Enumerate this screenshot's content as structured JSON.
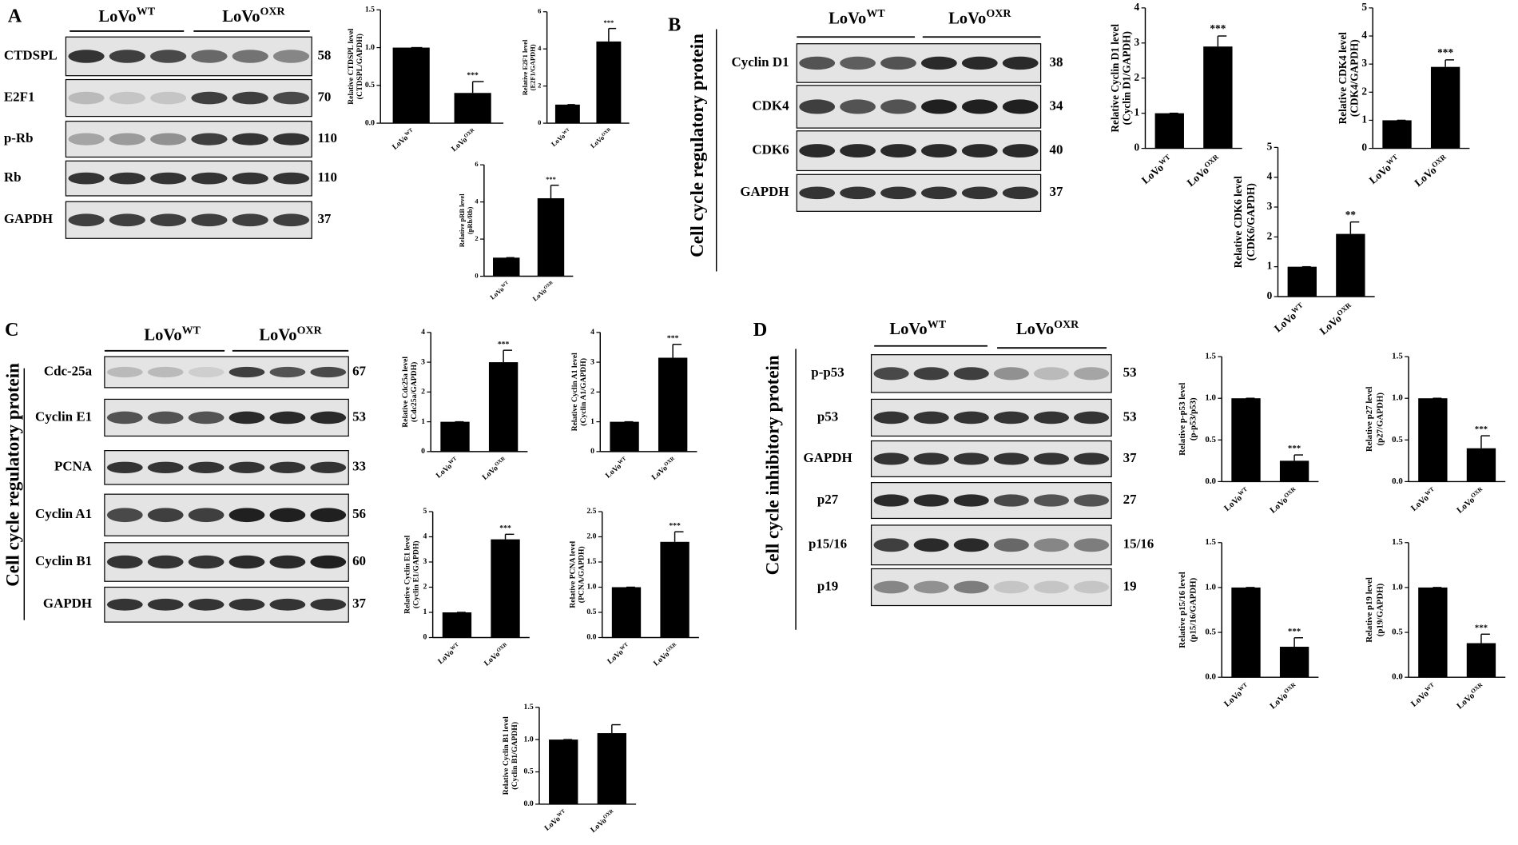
{
  "blots": [
    {
      "letter": "A",
      "groups": [
        {
          "base": "LoVo",
          "sup": "WT"
        },
        {
          "base": "LoVo",
          "sup": "OXR"
        }
      ],
      "rows": [
        {
          "label": "CTDSPL",
          "mw": "58"
        },
        {
          "label": "E2F1",
          "mw": "70"
        },
        {
          "label": "p-Rb",
          "mw": "110"
        },
        {
          "label": "Rb",
          "mw": "110"
        },
        {
          "label": "GAPDH",
          "mw": "37"
        }
      ]
    },
    {
      "letter": "B",
      "side_label": "Cell cycle regulatory protein",
      "groups": [
        {
          "base": "LoVo",
          "sup": "WT"
        },
        {
          "base": "LoVo",
          "sup": "OXR"
        }
      ],
      "rows": [
        {
          "label": "Cyclin D1",
          "mw": "38"
        },
        {
          "label": "CDK4",
          "mw": "34"
        },
        {
          "label": "CDK6",
          "mw": "40"
        },
        {
          "label": "GAPDH",
          "mw": "37"
        }
      ]
    },
    {
      "letter": "C",
      "side_label": "Cell cycle regulatory protein",
      "groups": [
        {
          "base": "LoVo",
          "sup": "WT"
        },
        {
          "base": "LoVo",
          "sup": "OXR"
        }
      ],
      "rows": [
        {
          "label": "Cdc-25a",
          "mw": "67"
        },
        {
          "label": "Cyclin E1",
          "mw": "53"
        },
        {
          "label": "PCNA",
          "mw": "33"
        },
        {
          "label": "Cyclin A1",
          "mw": "56"
        },
        {
          "label": "Cyclin B1",
          "mw": "60"
        },
        {
          "label": "GAPDH",
          "mw": "37"
        }
      ]
    },
    {
      "letter": "D",
      "side_label": "Cell cycle inhibitory protein",
      "groups": [
        {
          "base": "LoVo",
          "sup": "WT"
        },
        {
          "base": "LoVo",
          "sup": "OXR"
        }
      ],
      "rows": [
        {
          "label": "p-p53",
          "mw": "53"
        },
        {
          "label": "p53",
          "mw": "53"
        },
        {
          "label": "GAPDH",
          "mw": "37"
        },
        {
          "label": "p27",
          "mw": "27"
        },
        {
          "label": "p15/16",
          "mw": "15/16"
        },
        {
          "label": "p19",
          "mw": "19"
        }
      ]
    }
  ],
  "chart_data": [
    {
      "type": "bar",
      "ylabel": [
        "Relative CTDSPL level",
        "(CTDSPL/GAPDH)"
      ],
      "categories": [
        "LoVo",
        "LoVo"
      ],
      "category_superscripts": [
        "WT",
        "OXR"
      ],
      "values": [
        1,
        0.4
      ],
      "errors": [
        0,
        0.15
      ],
      "annotation": "***",
      "color": "#000000",
      "ylim": [
        0,
        1.5
      ],
      "yticks": [
        {
          "value": 0,
          "label": "0.0"
        },
        {
          "value": 0.5,
          "label": "0.5"
        },
        {
          "value": 1,
          "label": "1.0"
        },
        {
          "value": 1.5,
          "label": "1.5"
        }
      ]
    },
    {
      "type": "bar",
      "ylabel": [
        "Relative E2F1 level",
        "(E2F1/GAPDH)"
      ],
      "categories": [
        "LoVo",
        "LoVo"
      ],
      "category_superscripts": [
        "WT",
        "OXR"
      ],
      "values": [
        1,
        4.4
      ],
      "errors": [
        0,
        0.7
      ],
      "annotation": "***",
      "color": "#000000",
      "ylim": [
        0,
        6
      ],
      "yticks": [
        0,
        2,
        4,
        6
      ]
    },
    {
      "type": "bar",
      "ylabel": [
        "Relative pRB level",
        "(pRb/Rb)"
      ],
      "categories": [
        "LoVo",
        "LoVo"
      ],
      "category_superscripts": [
        "WT",
        "OXR"
      ],
      "values": [
        1,
        4.2
      ],
      "errors": [
        0,
        0.7
      ],
      "annotation": "***",
      "color": "#000000",
      "ylim": [
        0,
        6
      ],
      "yticks": [
        0,
        2,
        4,
        6
      ]
    },
    {
      "type": "bar",
      "ylabel": [
        "Relative Cyclin D1 level",
        "(Cyclin D1/GAPDH)"
      ],
      "categories": [
        "LoVo",
        "LoVo"
      ],
      "category_superscripts": [
        "WT",
        "OXR"
      ],
      "values": [
        1,
        2.9
      ],
      "errors": [
        0,
        0.3
      ],
      "annotation": "***",
      "color": "#000000",
      "ylim": [
        0,
        4
      ],
      "yticks": [
        0,
        1,
        2,
        3,
        4
      ]
    },
    {
      "type": "bar",
      "ylabel": [
        "Relative CDK4 level",
        "(CDK4/GAPDH)"
      ],
      "categories": [
        "LoVo",
        "LoVo"
      ],
      "category_superscripts": [
        "WT",
        "OXR"
      ],
      "values": [
        1,
        2.9
      ],
      "errors": [
        0,
        0.25
      ],
      "annotation": "***",
      "color": "#000000",
      "ylim": [
        0,
        5
      ],
      "yticks": [
        0,
        1,
        2,
        3,
        4,
        5
      ]
    },
    {
      "type": "bar",
      "ylabel": [
        "Relative CDK6 level",
        "(CDK6/GAPDH)"
      ],
      "categories": [
        "LoVo",
        "LoVo"
      ],
      "category_superscripts": [
        "WT",
        "OXR"
      ],
      "values": [
        1,
        2.1
      ],
      "errors": [
        0,
        0.4
      ],
      "annotation": "**",
      "color": "#000000",
      "ylim": [
        0,
        5
      ],
      "yticks": [
        0,
        1,
        2,
        3,
        4,
        5
      ]
    },
    {
      "type": "bar",
      "ylabel": [
        "Relative Cdc25a level",
        "(Cdc25a/GAPDH)"
      ],
      "categories": [
        "LoVo",
        "LoVo"
      ],
      "category_superscripts": [
        "WT",
        "OXR"
      ],
      "values": [
        1,
        3
      ],
      "errors": [
        0,
        0.4
      ],
      "annotation": "***",
      "color": "#000000",
      "ylim": [
        0,
        4
      ],
      "yticks": [
        0,
        1,
        2,
        3,
        4
      ]
    },
    {
      "type": "bar",
      "ylabel": [
        "Relative Cyclin A1 level",
        "(Cyclin A1/GAPDH)"
      ],
      "categories": [
        "LoVo",
        "LoVo"
      ],
      "category_superscripts": [
        "WT",
        "OXR"
      ],
      "values": [
        1,
        3.15
      ],
      "errors": [
        0,
        0.45
      ],
      "annotation": "***",
      "color": "#000000",
      "ylim": [
        0,
        4
      ],
      "yticks": [
        0,
        1,
        2,
        3,
        4
      ]
    },
    {
      "type": "bar",
      "ylabel": [
        "Relative Cyclin E1 level",
        "(Cyclin E1/GAPDH)"
      ],
      "categories": [
        "LoVo",
        "LoVo"
      ],
      "category_superscripts": [
        "WT",
        "OXR"
      ],
      "values": [
        1,
        3.9
      ],
      "errors": [
        0,
        0.2
      ],
      "annotation": "***",
      "color": "#000000",
      "ylim": [
        0,
        5
      ],
      "yticks": [
        0,
        1,
        2,
        3,
        4,
        5
      ]
    },
    {
      "type": "bar",
      "ylabel": [
        "Relative PCNA level",
        "(PCNA/GAPDH)"
      ],
      "categories": [
        "LoVo",
        "LoVo"
      ],
      "category_superscripts": [
        "WT",
        "OXR"
      ],
      "values": [
        1,
        1.9
      ],
      "errors": [
        0,
        0.2
      ],
      "annotation": "***",
      "color": "#000000",
      "ylim": [
        0,
        2.5
      ],
      "yticks": [
        {
          "value": 0,
          "label": "0.0"
        },
        {
          "value": 0.5,
          "label": "0.5"
        },
        {
          "value": 1,
          "label": "1.0"
        },
        {
          "value": 1.5,
          "label": "1.5"
        },
        {
          "value": 2,
          "label": "2.0"
        },
        {
          "value": 2.5,
          "label": "2.5"
        }
      ]
    },
    {
      "type": "bar",
      "ylabel": [
        "Relative Cyclin B1 level",
        "(Cyclin B1/GAPDH)"
      ],
      "categories": [
        "LoVo",
        "LoVo"
      ],
      "category_superscripts": [
        "WT",
        "OXR"
      ],
      "values": [
        1,
        1.1
      ],
      "errors": [
        0,
        0.13
      ],
      "color": "#000000",
      "ylim": [
        0,
        1.5
      ],
      "yticks": [
        {
          "value": 0,
          "label": "0.0"
        },
        {
          "value": 0.5,
          "label": "0.5"
        },
        {
          "value": 1,
          "label": "1.0"
        },
        {
          "value": 1.5,
          "label": "1.5"
        }
      ]
    },
    {
      "type": "bar",
      "ylabel": [
        "Relative p-p53 level",
        "(p-p53/p53)"
      ],
      "categories": [
        "LoVo",
        "LoVo"
      ],
      "category_superscripts": [
        "WT",
        "OXR"
      ],
      "values": [
        1,
        0.25
      ],
      "errors": [
        0,
        0.07
      ],
      "annotation": "***",
      "color": "#000000",
      "ylim": [
        0,
        1.5
      ],
      "yticks": [
        {
          "value": 0,
          "label": "0.0"
        },
        {
          "value": 0.5,
          "label": "0.5"
        },
        {
          "value": 1,
          "label": "1.0"
        },
        {
          "value": 1.5,
          "label": "1.5"
        }
      ]
    },
    {
      "type": "bar",
      "ylabel": [
        "Relative p27 level",
        "(p27/GAPDH)"
      ],
      "categories": [
        "LoVo",
        "LoVo"
      ],
      "category_superscripts": [
        "WT",
        "OXR"
      ],
      "values": [
        1,
        0.4
      ],
      "errors": [
        0,
        0.15
      ],
      "annotation": "***",
      "color": "#000000",
      "ylim": [
        0,
        1.5
      ],
      "yticks": [
        {
          "value": 0,
          "label": "0.0"
        },
        {
          "value": 0.5,
          "label": "0.5"
        },
        {
          "value": 1,
          "label": "1.0"
        },
        {
          "value": 1.5,
          "label": "1.5"
        }
      ]
    },
    {
      "type": "bar",
      "ylabel": [
        "Relative p15/16 level",
        "(p15/16/GAPDH)"
      ],
      "categories": [
        "LoVo",
        "LoVo"
      ],
      "category_superscripts": [
        "WT",
        "OXR"
      ],
      "values": [
        1,
        0.34
      ],
      "errors": [
        0,
        0.1
      ],
      "annotation": "***",
      "color": "#000000",
      "ylim": [
        0,
        1.5
      ],
      "yticks": [
        {
          "value": 0,
          "label": "0.0"
        },
        {
          "value": 0.5,
          "label": "0.5"
        },
        {
          "value": 1,
          "label": "1.0"
        },
        {
          "value": 1.5,
          "label": "1.5"
        }
      ]
    },
    {
      "type": "bar",
      "ylabel": [
        "Relative p19 level",
        "(p19/GAPDH)"
      ],
      "categories": [
        "LoVo",
        "LoVo"
      ],
      "category_superscripts": [
        "WT",
        "OXR"
      ],
      "values": [
        1,
        0.38
      ],
      "errors": [
        0,
        0.1
      ],
      "annotation": "***",
      "color": "#000000",
      "ylim": [
        0,
        1.5
      ],
      "yticks": [
        {
          "value": 0,
          "label": "0.0"
        },
        {
          "value": 0.5,
          "label": "0.5"
        },
        {
          "value": 1,
          "label": "1.0"
        },
        {
          "value": 1.5,
          "label": "1.5"
        }
      ]
    }
  ]
}
